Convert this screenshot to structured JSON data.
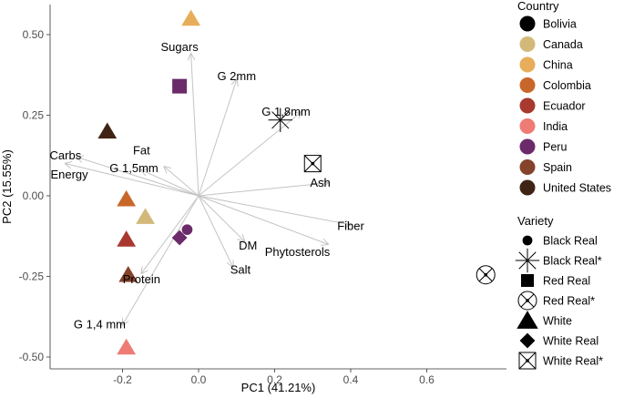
{
  "chart_data": {
    "type": "scatter",
    "subtype": "pca-biplot",
    "xlabel": "PC1 (41.21%)",
    "ylabel": "PC2 (15.55%)",
    "xlim": [
      -0.4,
      0.8
    ],
    "ylim": [
      -0.52,
      0.6
    ],
    "xticks": [
      -0.2,
      0.0,
      0.2,
      0.4,
      0.6
    ],
    "xtick_labels": [
      "-0.2",
      "0.0",
      "0.2",
      "0.4",
      "0.6"
    ],
    "yticks": [
      -0.5,
      -0.25,
      0.0,
      0.25,
      0.5
    ],
    "ytick_labels": [
      "-0.50",
      "-0.25",
      "0.00",
      "0.25",
      "0.50"
    ],
    "grid": false,
    "legend_position": "right",
    "loadings": [
      {
        "label": "Sugars",
        "x": -0.02,
        "y": 0.44,
        "lx": -0.05,
        "ly": 0.46
      },
      {
        "label": "G 2mm",
        "x": 0.1,
        "y": 0.36,
        "lx": 0.1,
        "ly": 0.37
      },
      {
        "label": "G 1,8mm",
        "x": 0.27,
        "y": 0.26,
        "lx": 0.23,
        "ly": 0.26
      },
      {
        "label": "Fat",
        "x": -0.09,
        "y": 0.09,
        "lx": -0.15,
        "ly": 0.14
      },
      {
        "label": "Carbs",
        "x": -0.32,
        "y": 0.12,
        "lx": -0.35,
        "ly": 0.125
      },
      {
        "label": "Energy",
        "x": -0.35,
        "y": 0.1,
        "lx": -0.34,
        "ly": 0.065
      },
      {
        "label": "G 1,5mm",
        "x": -0.15,
        "y": 0.08,
        "lx": -0.17,
        "ly": 0.085
      },
      {
        "label": "Ash",
        "x": 0.34,
        "y": 0.04,
        "lx": 0.32,
        "ly": 0.04
      },
      {
        "label": "Fiber",
        "x": 0.4,
        "y": -0.09,
        "lx": 0.4,
        "ly": -0.095
      },
      {
        "label": "Phytosterols",
        "x": 0.34,
        "y": -0.15,
        "lx": 0.26,
        "ly": -0.175
      },
      {
        "label": "DM",
        "x": 0.12,
        "y": -0.14,
        "lx": 0.13,
        "ly": -0.155
      },
      {
        "label": "Salt",
        "x": 0.09,
        "y": -0.22,
        "lx": 0.11,
        "ly": -0.23
      },
      {
        "label": "Protein",
        "x": -0.15,
        "y": -0.24,
        "lx": -0.15,
        "ly": -0.26
      },
      {
        "label": "G 1,4 mm",
        "x": -0.2,
        "y": -0.4,
        "lx": -0.26,
        "ly": -0.4
      }
    ],
    "points": [
      {
        "x": -0.02,
        "y": 0.55,
        "country": "China",
        "variety": "White"
      },
      {
        "x": -0.05,
        "y": 0.34,
        "country": "Peru",
        "variety": "Red Real"
      },
      {
        "x": 0.215,
        "y": 0.235,
        "country": "Bolivia",
        "variety": "Black Real*"
      },
      {
        "x": -0.24,
        "y": 0.2,
        "country": "United States",
        "variety": "White"
      },
      {
        "x": 0.3,
        "y": 0.1,
        "country": "Bolivia",
        "variety": "White Real*"
      },
      {
        "x": -0.19,
        "y": -0.01,
        "country": "Colombia",
        "variety": "White"
      },
      {
        "x": -0.14,
        "y": -0.065,
        "country": "Canada",
        "variety": "White"
      },
      {
        "x": -0.19,
        "y": -0.135,
        "country": "Ecuador",
        "variety": "White"
      },
      {
        "x": -0.03,
        "y": -0.105,
        "country": "Peru",
        "variety": "Black Real"
      },
      {
        "x": -0.05,
        "y": -0.13,
        "country": "Peru",
        "variety": "White Real"
      },
      {
        "x": -0.185,
        "y": -0.245,
        "country": "Spain",
        "variety": "White"
      },
      {
        "x": -0.19,
        "y": -0.47,
        "country": "India",
        "variety": "White"
      },
      {
        "x": 0.755,
        "y": -0.245,
        "country": "Bolivia",
        "variety": "Red Real*"
      }
    ],
    "country_legend": {
      "title": "Country",
      "items": [
        {
          "label": "Bolivia",
          "color": "#000000"
        },
        {
          "label": "Canada",
          "color": "#d2b97a"
        },
        {
          "label": "China",
          "color": "#e8ad5a"
        },
        {
          "label": "Colombia",
          "color": "#c8672a"
        },
        {
          "label": "Ecuador",
          "color": "#a8392e"
        },
        {
          "label": "India",
          "color": "#ee7b74"
        },
        {
          "label": "Peru",
          "color": "#6b2a6a"
        },
        {
          "label": "Spain",
          "color": "#86432c"
        },
        {
          "label": "United States",
          "color": "#3f2416"
        }
      ]
    },
    "variety_legend": {
      "title": "Variety",
      "items": [
        {
          "label": "Black Real",
          "shape": "circle"
        },
        {
          "label": "Black Real*",
          "shape": "asterisk"
        },
        {
          "label": "Red Real",
          "shape": "square"
        },
        {
          "label": "Red Real*",
          "shape": "circle-x"
        },
        {
          "label": "White",
          "shape": "triangle"
        },
        {
          "label": "White Real",
          "shape": "diamond"
        },
        {
          "label": "White Real*",
          "shape": "square-x"
        }
      ]
    },
    "arrow_color": "#c4c4c4"
  }
}
